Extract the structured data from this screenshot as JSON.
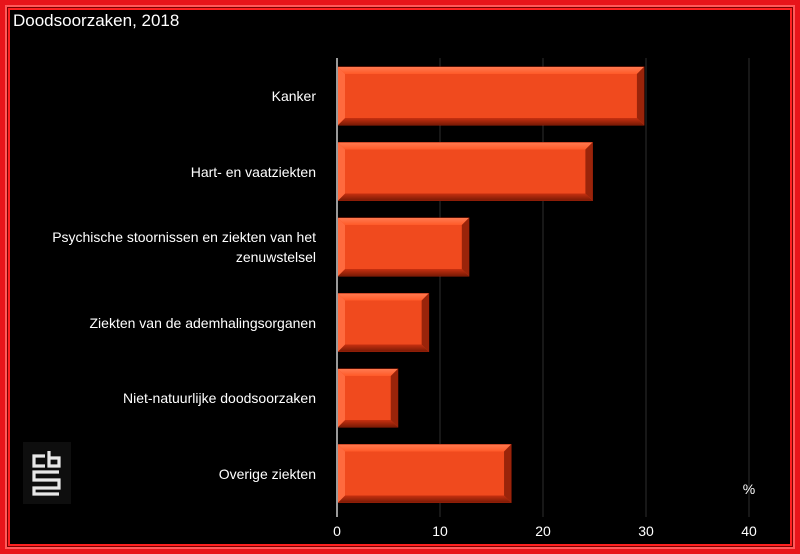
{
  "chart_data": {
    "type": "bar",
    "orientation": "horizontal",
    "title": "Doodsoorzaken, 2018",
    "unit_label": "%",
    "categories": [
      "Kanker",
      "Hart- en vaatziekten",
      "Psychische stoornissen en ziekten van het zenuwstelsel",
      "Ziekten van de ademhalingsorganen",
      "Niet-natuurlijke doodsoorzaken",
      "Overige ziekten"
    ],
    "values": [
      29.7,
      24.7,
      12.7,
      8.8,
      5.8,
      16.8
    ],
    "xlim": [
      0,
      40
    ],
    "xticks": [
      0,
      10,
      20,
      30,
      40
    ],
    "grid": true,
    "bar_color": "#f04a1e"
  },
  "branding": {
    "logo": "cbs-logo-icon"
  }
}
